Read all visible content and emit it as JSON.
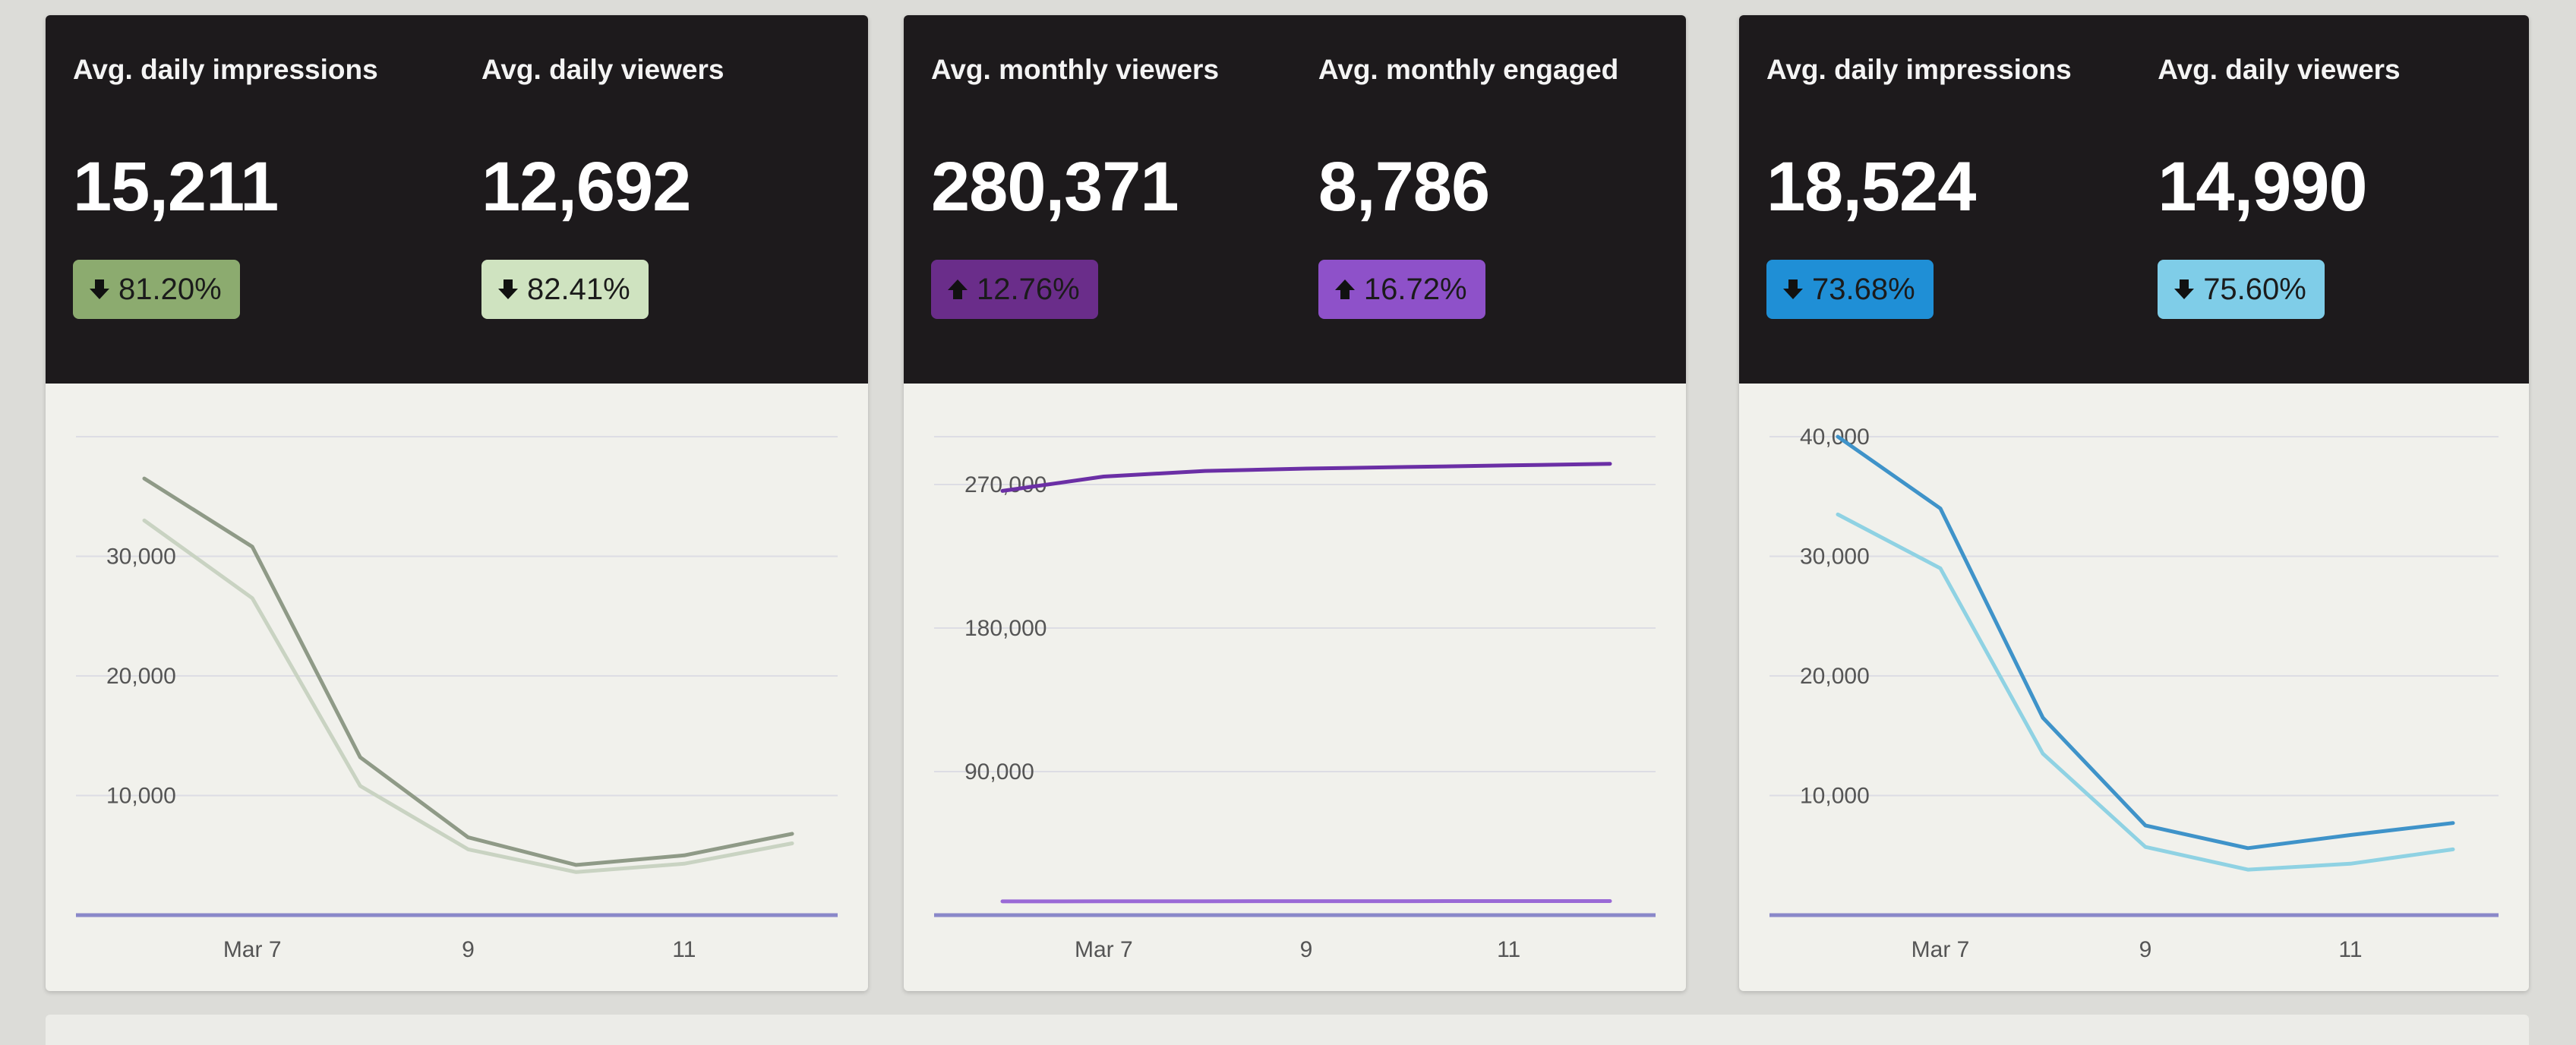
{
  "cards": [
    {
      "stats": [
        {
          "label": "Avg. daily impressions",
          "value": "15,211",
          "change": "81.20%",
          "direction": "down",
          "badge_color": "#8cab6f"
        },
        {
          "label": "Avg. daily viewers",
          "value": "12,692",
          "change": "82.41%",
          "direction": "down",
          "badge_color": "#cfe3c0"
        }
      ],
      "chart_data": {
        "type": "line",
        "x_ticks": [
          "Mar 7",
          "9",
          "11"
        ],
        "y_ticks": [
          "10,000",
          "20,000",
          "30,000"
        ],
        "ylim": [
          0,
          40000
        ],
        "x": [
          6,
          7,
          8,
          9,
          10,
          11,
          12
        ],
        "series": [
          {
            "color": "#8f9a87",
            "values": [
              36500,
              30800,
              13200,
              6500,
              4200,
              5000,
              6800
            ]
          },
          {
            "color": "#c9d3c2",
            "values": [
              33000,
              26500,
              10800,
              5500,
              3600,
              4300,
              6000
            ]
          }
        ]
      }
    },
    {
      "stats": [
        {
          "label": "Avg. monthly viewers",
          "value": "280,371",
          "change": "12.76%",
          "direction": "up",
          "badge_color": "#6a2d8a"
        },
        {
          "label": "Avg. monthly engaged",
          "value": "8,786",
          "change": "16.72%",
          "direction": "up",
          "badge_color": "#8e51c9"
        }
      ],
      "chart_data": {
        "type": "line",
        "x_ticks": [
          "Mar 7",
          "9",
          "11"
        ],
        "y_ticks": [
          "90,000",
          "180,000",
          "270,000"
        ],
        "ylim": [
          0,
          300000
        ],
        "x": [
          6,
          7,
          8,
          9,
          10,
          11,
          12
        ],
        "series": [
          {
            "color": "#6b2fa5",
            "values": [
              266000,
              275000,
              278500,
              280000,
              281000,
              282000,
              283000
            ]
          },
          {
            "color": "#9a6ad6",
            "values": [
              8600,
              8650,
              8700,
              8750,
              8780,
              8800,
              8820
            ]
          }
        ]
      }
    },
    {
      "stats": [
        {
          "label": "Avg. daily impressions",
          "value": "18,524",
          "change": "73.68%",
          "direction": "down",
          "badge_color": "#1f8fd6"
        },
        {
          "label": "Avg. daily viewers",
          "value": "14,990",
          "change": "75.60%",
          "direction": "down",
          "badge_color": "#7fcde8"
        }
      ],
      "chart_data": {
        "type": "line",
        "x_ticks": [
          "Mar 7",
          "9",
          "11"
        ],
        "y_ticks": [
          "10,000",
          "20,000",
          "30,000",
          "40,000"
        ],
        "ylim": [
          0,
          40000
        ],
        "x": [
          6,
          7,
          8,
          9,
          10,
          11,
          12
        ],
        "series": [
          {
            "color": "#3f93c9",
            "values": [
              40000,
              34000,
              16500,
              7500,
              5600,
              6700,
              7700
            ]
          },
          {
            "color": "#8fd2e3",
            "values": [
              33500,
              29000,
              13500,
              5700,
              3800,
              4300,
              5500
            ]
          }
        ]
      }
    }
  ]
}
